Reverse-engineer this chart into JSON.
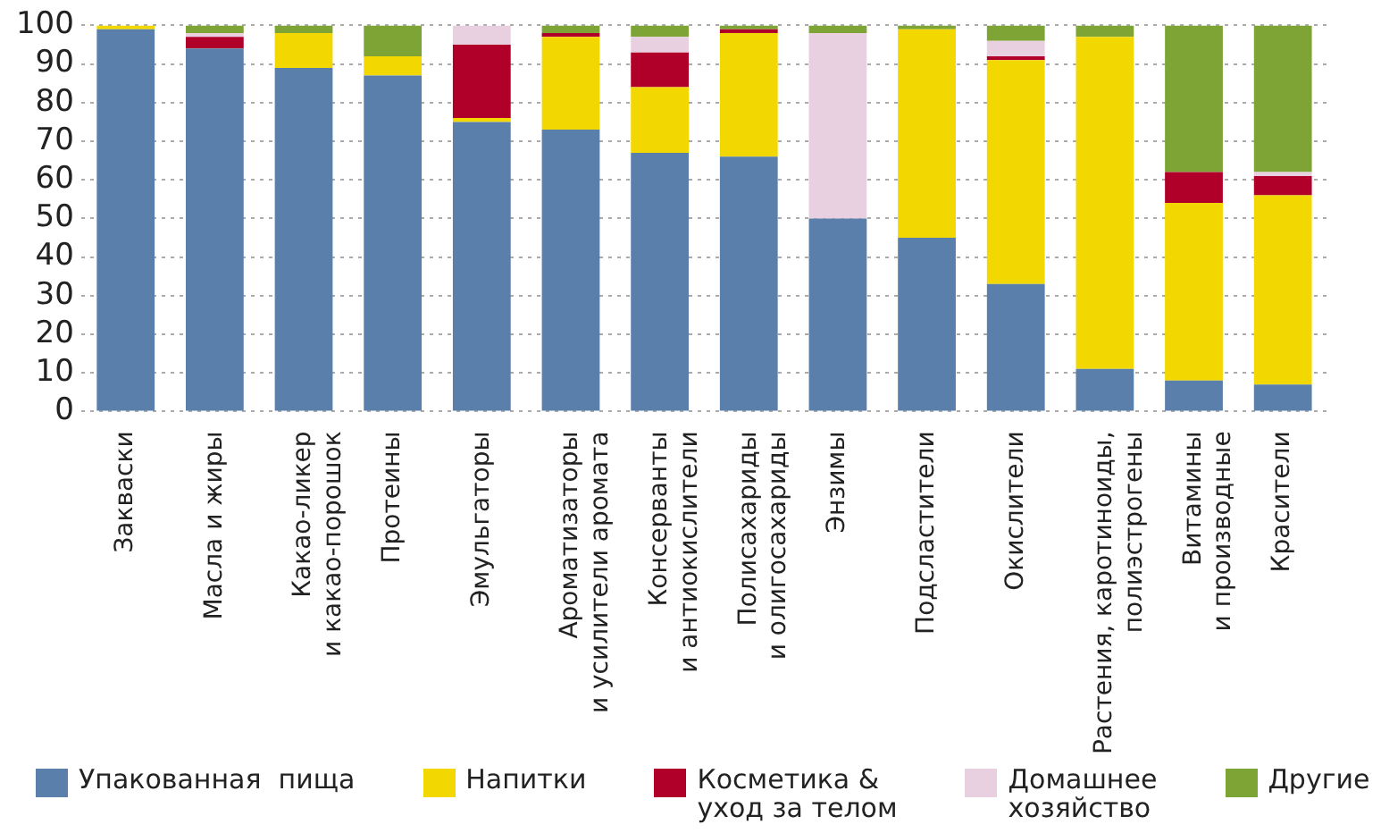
{
  "chart_data": {
    "type": "bar",
    "stacked": true,
    "categories": [
      "Закваски",
      "Масла и жиры",
      "Какао-ликер\nи какао-порошок",
      "Протеины",
      "Эмульгаторы",
      "Ароматизаторы\nи усилители аромата",
      "Консерванты\nи антиокислители",
      "Полисахариды\nи олигосахариды",
      "Энзимы",
      "Подсластители",
      "Окислители",
      "Растения, каротиноиды,\nполиэстрогены",
      "Витамины\nи производные",
      "Красители"
    ],
    "series": [
      {
        "name": "Упакованная  пища",
        "color": "#5b7fab",
        "values": [
          99,
          94,
          89,
          87,
          75,
          73,
          67,
          66,
          50,
          45,
          33,
          11,
          8,
          7
        ]
      },
      {
        "name": "Напитки",
        "color": "#f2d800",
        "values": [
          1,
          0,
          9,
          5,
          1,
          24,
          17,
          32,
          0,
          54,
          58,
          86,
          46,
          49
        ]
      },
      {
        "name": "Косметика &\nуход за телом",
        "color": "#b0002a",
        "values": [
          0,
          3,
          0,
          0,
          19,
          1,
          9,
          1,
          0,
          0,
          1,
          0,
          8,
          5
        ]
      },
      {
        "name": "Домашнее\nхозяйство",
        "color": "#e8d0e0",
        "values": [
          0,
          1,
          0,
          0,
          5,
          0,
          4,
          0,
          48,
          0,
          4,
          0,
          0,
          1
        ]
      },
      {
        "name": "Другие",
        "color": "#7ea436",
        "values": [
          0,
          2,
          2,
          8,
          0,
          2,
          3,
          1,
          2,
          1,
          4,
          3,
          38,
          38
        ]
      }
    ],
    "ylim": [
      0,
      100
    ],
    "yticks": [
      0,
      10,
      20,
      30,
      40,
      50,
      60,
      70,
      80,
      90,
      100
    ],
    "grid": "y",
    "legend": "bottom"
  }
}
